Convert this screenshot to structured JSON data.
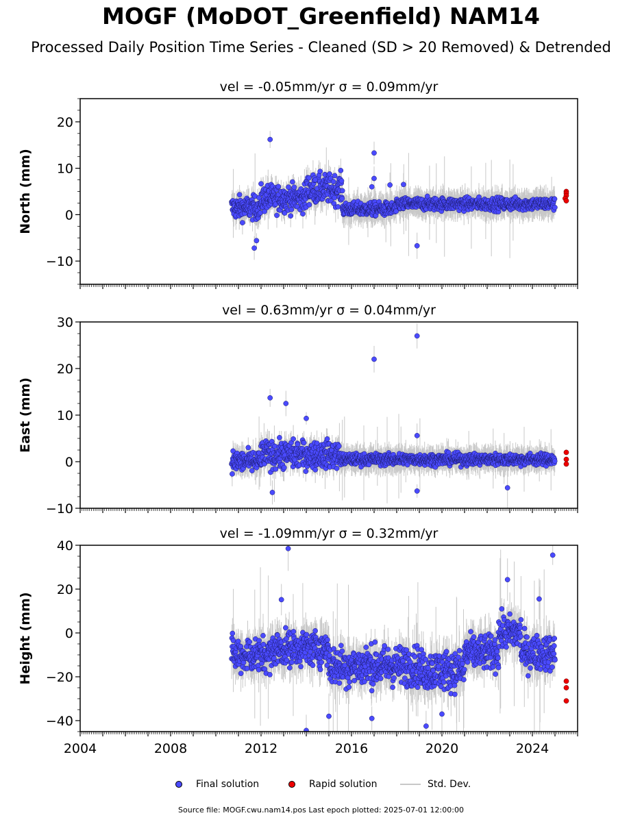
{
  "title": "MOGF (MoDOT_Greenfield) NAM14",
  "subtitle": "Processed Daily Position Time Series - Cleaned (SD > 20 Removed) & Detrended",
  "footer": "Source file: MOGF.cwu.nam14.pos  Last epoch plotted: 2025-07-01 12:00:00",
  "legend": {
    "final": "Final solution",
    "rapid": "Rapid solution",
    "std": "Std. Dev."
  },
  "colors": {
    "final": "#4a4aff",
    "rapid": "#ee0000",
    "std": "#c8c8c8"
  },
  "chart_data": [
    {
      "type": "scatter",
      "panel": "north",
      "title": "vel = -0.05mm/yr   σ = 0.09mm/yr",
      "ylabel": "North (mm)",
      "xlim": [
        2004.0,
        2026.0
      ],
      "ylim": [
        -15,
        25
      ],
      "yticks": [
        -10,
        0,
        10,
        20
      ],
      "ytick_labels": [
        "−10",
        "0",
        "10",
        "20"
      ],
      "segments": [
        {
          "x0": 2010.7,
          "x1": 2012.0,
          "mean": 1.5,
          "spread": 2.2
        },
        {
          "x0": 2012.0,
          "x1": 2014.0,
          "mean": 3.5,
          "spread": 2.6
        },
        {
          "x0": 2014.0,
          "x1": 2015.6,
          "mean": 5.5,
          "spread": 2.8
        },
        {
          "x0": 2015.6,
          "x1": 2018.0,
          "mean": 1.2,
          "spread": 1.3
        },
        {
          "x0": 2018.0,
          "x1": 2025.0,
          "mean": 2.3,
          "spread": 1.2
        }
      ],
      "outliers": [
        [
          2012.4,
          16.2
        ],
        [
          2017.0,
          13.3
        ],
        [
          2017.0,
          7.8
        ],
        [
          2016.9,
          6.0
        ],
        [
          2011.7,
          -7.2
        ],
        [
          2011.8,
          -5.6
        ],
        [
          2018.9,
          -6.7
        ],
        [
          2018.3,
          6.5
        ],
        [
          2017.7,
          6.4
        ],
        [
          2014.4,
          7.5
        ]
      ],
      "rapid": [
        [
          2025.5,
          5.0
        ],
        [
          2025.5,
          4.6
        ],
        [
          2025.5,
          4.1
        ],
        [
          2025.45,
          3.5
        ],
        [
          2025.5,
          3.0
        ]
      ]
    },
    {
      "type": "scatter",
      "panel": "east",
      "title": "vel = 0.63mm/yr   σ = 0.04mm/yr",
      "ylabel": "East (mm)",
      "xlim": [
        2004.0,
        2026.0
      ],
      "ylim": [
        -10,
        30
      ],
      "yticks": [
        -10,
        0,
        10,
        20,
        30
      ],
      "ytick_labels": [
        "−10",
        "0",
        "10",
        "20",
        "30"
      ],
      "segments": [
        {
          "x0": 2010.7,
          "x1": 2012.0,
          "mean": 0.0,
          "spread": 2.0
        },
        {
          "x0": 2012.0,
          "x1": 2015.5,
          "mean": 1.5,
          "spread": 2.6
        },
        {
          "x0": 2015.5,
          "x1": 2025.0,
          "mean": 0.5,
          "spread": 1.1
        }
      ],
      "outliers": [
        [
          2012.4,
          13.7
        ],
        [
          2013.1,
          12.5
        ],
        [
          2017.0,
          22.0
        ],
        [
          2018.9,
          27.0
        ],
        [
          2018.9,
          5.6
        ],
        [
          2018.9,
          -6.3
        ],
        [
          2022.9,
          -5.6
        ],
        [
          2014.0,
          9.3
        ],
        [
          2012.5,
          -6.6
        ]
      ],
      "rapid": [
        [
          2025.5,
          2.0
        ],
        [
          2025.5,
          0.5
        ],
        [
          2025.5,
          -0.5
        ]
      ]
    },
    {
      "type": "scatter",
      "panel": "height",
      "title": "vel = -1.09mm/yr   σ = 0.32mm/yr",
      "ylabel": "Height (mm)",
      "xlim": [
        2004.0,
        2026.0
      ],
      "ylim": [
        -45,
        40
      ],
      "yticks": [
        -40,
        -20,
        0,
        20,
        40
      ],
      "ytick_labels": [
        "−40",
        "−20",
        "0",
        "20",
        "40"
      ],
      "xticks": [
        2004,
        2008,
        2012,
        2016,
        2020,
        2024
      ],
      "xtick_labels": [
        "2004",
        "2008",
        "2012",
        "2016",
        "2020",
        "2024"
      ],
      "segments": [
        {
          "x0": 2010.7,
          "x1": 2012.5,
          "mean": -10.0,
          "spread": 7.0
        },
        {
          "x0": 2012.5,
          "x1": 2015.0,
          "mean": -7.0,
          "spread": 7.0
        },
        {
          "x0": 2015.0,
          "x1": 2019.0,
          "mean": -15.0,
          "spread": 8.0
        },
        {
          "x0": 2019.0,
          "x1": 2021.0,
          "mean": -17.0,
          "spread": 8.0
        },
        {
          "x0": 2021.0,
          "x1": 2022.5,
          "mean": -9.0,
          "spread": 7.0
        },
        {
          "x0": 2022.5,
          "x1": 2023.5,
          "mean": 0.0,
          "spread": 7.0
        },
        {
          "x0": 2023.5,
          "x1": 2025.0,
          "mean": -9.0,
          "spread": 7.0
        }
      ],
      "outliers": [
        [
          2013.2,
          38.5
        ],
        [
          2022.9,
          24.3
        ],
        [
          2024.9,
          35.5
        ],
        [
          2014.0,
          -44.5
        ],
        [
          2015.0,
          -38.0
        ],
        [
          2016.9,
          -39.0
        ],
        [
          2019.3,
          -42.5
        ],
        [
          2020.0,
          -37.0
        ],
        [
          2024.3,
          15.5
        ],
        [
          2012.9,
          15.2
        ]
      ],
      "rapid": [
        [
          2025.5,
          -22.0
        ],
        [
          2025.5,
          -25.0
        ],
        [
          2025.5,
          -31.0
        ]
      ]
    }
  ]
}
